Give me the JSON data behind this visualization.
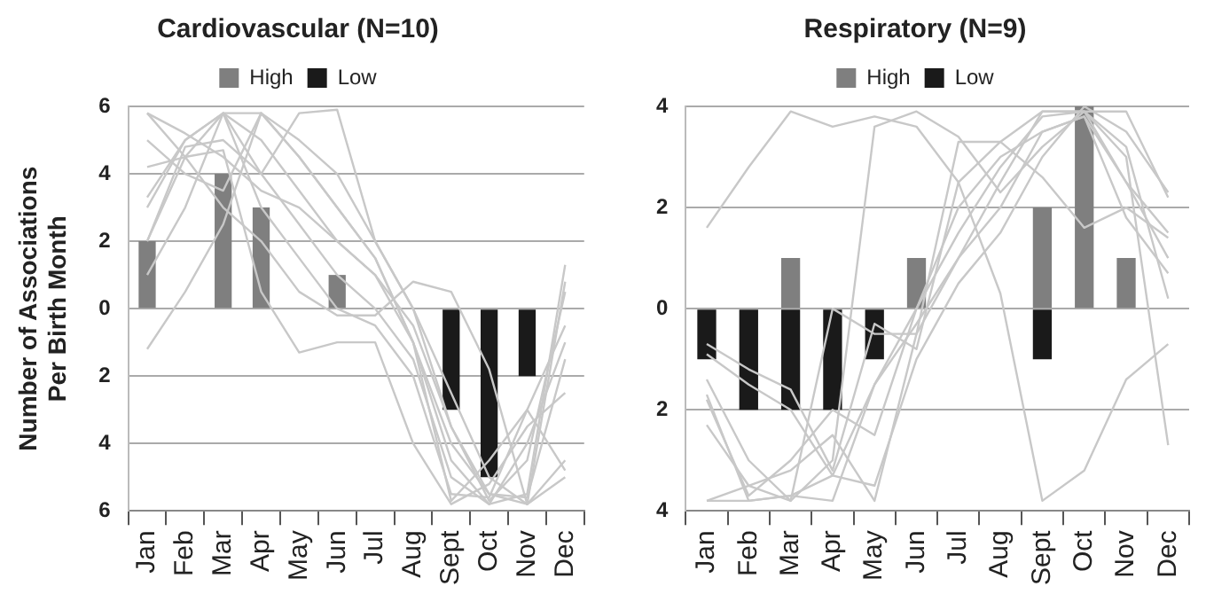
{
  "chart_data": [
    {
      "type": "bar",
      "title": "Cardiovascular (N=10)",
      "ylabel": "Number of Associations\nPer Birth Month",
      "categories": [
        "Jan",
        "Feb",
        "Mar",
        "Apr",
        "May",
        "Jun",
        "Jul",
        "Aug",
        "Sept",
        "Oct",
        "Nov",
        "Dec"
      ],
      "ylim": [
        -6,
        6
      ],
      "yticks": [
        {
          "value": -6,
          "label": "6"
        },
        {
          "value": -4,
          "label": "4"
        },
        {
          "value": -2,
          "label": "2"
        },
        0,
        2,
        4,
        6
      ],
      "grid": "y",
      "legend": "top",
      "stacked": true,
      "marker": "none",
      "series": [
        {
          "name": "High",
          "color": "#7f7f7f",
          "values": [
            2,
            null,
            4,
            3,
            null,
            1,
            null,
            null,
            null,
            null,
            null,
            null
          ]
        },
        {
          "name": "Low",
          "color": "#1a1a1a",
          "values": [
            null,
            null,
            null,
            null,
            null,
            null,
            null,
            null,
            -3,
            -5,
            -2,
            null
          ]
        },
        {
          "type": "line",
          "color": "#c8c8c8",
          "values": [
            5.8,
            5.2,
            4.5,
            3.5,
            3,
            2,
            1,
            -1,
            -4,
            -5.5,
            -5.8,
            -5
          ]
        },
        {
          "type": "line",
          "color": "#c8c8c8",
          "values": [
            -1.2,
            0.5,
            2.5,
            5.8,
            4.5,
            3,
            1.5,
            -1,
            -4.5,
            -5.8,
            -5.5,
            1.3
          ]
        },
        {
          "type": "line",
          "color": "#c8c8c8",
          "values": [
            3,
            5,
            5.8,
            4,
            2.5,
            1,
            0,
            -1.5,
            -5,
            -5.8,
            -4,
            -1
          ]
        },
        {
          "type": "line",
          "color": "#c8c8c8",
          "values": [
            2,
            4.5,
            5.8,
            5,
            3.5,
            2,
            1,
            -0.5,
            -3.5,
            -5.5,
            -5.6,
            -1.5
          ]
        },
        {
          "type": "line",
          "color": "#c8c8c8",
          "values": [
            5,
            4,
            3.5,
            5.8,
            5,
            4,
            2,
            0,
            -3.5,
            -5.7,
            -4.5,
            0.5
          ]
        },
        {
          "type": "line",
          "color": "#c8c8c8",
          "values": [
            3.3,
            5,
            5.8,
            3,
            1.5,
            0,
            -0.5,
            -2,
            -5.5,
            -5.6,
            -3,
            -0.5
          ]
        },
        {
          "type": "line",
          "color": "#c8c8c8",
          "values": [
            5.8,
            4.5,
            4.7,
            0.5,
            -1.3,
            -1,
            -1,
            -4,
            -5.8,
            -5.2,
            -3.5,
            -2.5
          ]
        },
        {
          "type": "line",
          "color": "#c8c8c8",
          "values": [
            1,
            3,
            5.8,
            5.8,
            4.5,
            3,
            1.5,
            -1,
            -5.7,
            -4.5,
            -3,
            -4.8
          ]
        },
        {
          "type": "line",
          "color": "#c8c8c8",
          "values": [
            2,
            4.8,
            5,
            4,
            5.8,
            5.9,
            2,
            0,
            -2.5,
            -5,
            -5.8,
            -4.5
          ]
        },
        {
          "type": "line",
          "color": "#c8c8c8",
          "values": [
            4.2,
            4.5,
            3,
            2,
            0.5,
            -0.2,
            -0.2,
            0.8,
            0.5,
            -1.8,
            -5.8,
            0.8
          ]
        }
      ]
    },
    {
      "type": "bar",
      "title": "Respiratory (N=9)",
      "categories": [
        "Jan",
        "Feb",
        "Mar",
        "Apr",
        "May",
        "Jun",
        "Jul",
        "Aug",
        "Sept",
        "Oct",
        "Nov",
        "Dec"
      ],
      "ylim": [
        -4,
        4
      ],
      "yticks": [
        {
          "value": -4,
          "label": "4"
        },
        {
          "value": -2,
          "label": "2"
        },
        0,
        2,
        4
      ],
      "grid": "y",
      "legend": "top",
      "stacked": true,
      "marker": "none",
      "series": [
        {
          "name": "High",
          "color": "#7f7f7f",
          "values": [
            null,
            null,
            1,
            null,
            null,
            1,
            null,
            null,
            2,
            4,
            1,
            null
          ]
        },
        {
          "name": "Low",
          "color": "#1a1a1a",
          "values": [
            -1,
            -2,
            -2,
            -2,
            -1,
            null,
            null,
            null,
            -1,
            null,
            null,
            null
          ]
        },
        {
          "type": "line",
          "color": "#c8c8c8",
          "values": [
            1.6,
            2.8,
            3.9,
            3.6,
            3.8,
            3.6,
            2.5,
            0.3,
            -3.8,
            -3.2,
            -1.4,
            -0.7
          ]
        },
        {
          "type": "line",
          "color": "#c8c8c8",
          "values": [
            -0.7,
            -1.2,
            -1.6,
            -3.2,
            -0.3,
            -0.8,
            2.5,
            3.3,
            3.9,
            3.9,
            3.9,
            2.2
          ]
        },
        {
          "type": "line",
          "color": "#c8c8c8",
          "values": [
            -1.7,
            -3.8,
            -3.7,
            -3.8,
            -1.5,
            0,
            1.5,
            2.8,
            3.8,
            3.9,
            2.5,
            1.5
          ]
        },
        {
          "type": "line",
          "color": "#c8c8c8",
          "values": [
            -2.3,
            -3.5,
            -3.8,
            0,
            -0.5,
            -0.5,
            3.3,
            3.3,
            2.6,
            1.6,
            2,
            1.4
          ]
        },
        {
          "type": "line",
          "color": "#c8c8c8",
          "values": [
            -3.8,
            -3.5,
            -3.2,
            -2.5,
            -3.8,
            -0.5,
            1,
            2.5,
            3.9,
            3.9,
            3,
            -2.7
          ]
        },
        {
          "type": "line",
          "color": "#c8c8c8",
          "values": [
            -1.4,
            -3,
            -3.8,
            -3,
            3.6,
            3.9,
            3.4,
            2.3,
            3.2,
            3.9,
            3.2,
            0.2
          ]
        },
        {
          "type": "line",
          "color": "#c8c8c8",
          "values": [
            -1.8,
            -3.7,
            -3,
            -2,
            -2.5,
            0,
            2,
            3,
            3.5,
            3.8,
            2.5,
            1
          ]
        },
        {
          "type": "line",
          "color": "#c8c8c8",
          "values": [
            -0.9,
            -1.5,
            -2,
            -3.3,
            -3.5,
            -1,
            0.5,
            1.5,
            3,
            4,
            3.5,
            2.3
          ]
        },
        {
          "type": "line",
          "color": "#c8c8c8",
          "values": [
            -3.8,
            -3.8,
            -3.7,
            -3.3,
            -1.5,
            -0.3,
            1,
            2,
            3.5,
            3.8,
            1.8,
            0.7
          ]
        }
      ]
    }
  ]
}
